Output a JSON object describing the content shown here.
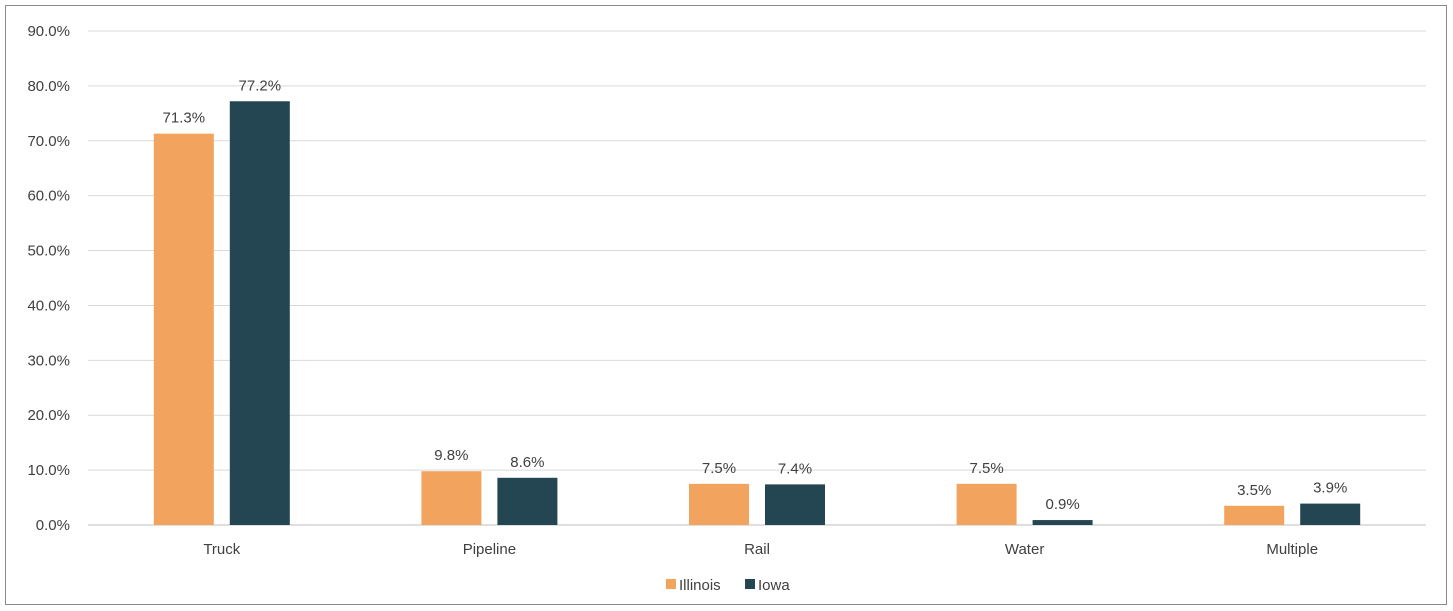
{
  "chart_data": {
    "type": "bar",
    "categories": [
      "Truck",
      "Pipeline",
      "Rail",
      "Water",
      "Multiple"
    ],
    "series": [
      {
        "name": "Illinois",
        "values": [
          71.3,
          9.8,
          7.5,
          7.5,
          3.5
        ],
        "labels": [
          "71.3%",
          "9.8%",
          "7.5%",
          "7.5%",
          "3.5%"
        ],
        "color": "#f2a45f"
      },
      {
        "name": "Iowa",
        "values": [
          77.2,
          8.6,
          7.4,
          0.9,
          3.9
        ],
        "labels": [
          "77.2%",
          "8.6%",
          "7.4%",
          "0.9%",
          "3.9%"
        ],
        "color": "#244653"
      }
    ],
    "ylim": [
      0,
      90
    ],
    "yticks": [
      0,
      10,
      20,
      30,
      40,
      50,
      60,
      70,
      80,
      90
    ],
    "ytick_labels": [
      "0.0%",
      "10.0%",
      "20.0%",
      "30.0%",
      "40.0%",
      "50.0%",
      "60.0%",
      "70.0%",
      "80.0%",
      "90.0%"
    ],
    "grid": true,
    "legend_placement": "bottom-center",
    "colors": {
      "grid": "#d9d9d9",
      "axis": "#bfbfbf",
      "text": "#404040",
      "border": "#8a8a8a"
    }
  }
}
